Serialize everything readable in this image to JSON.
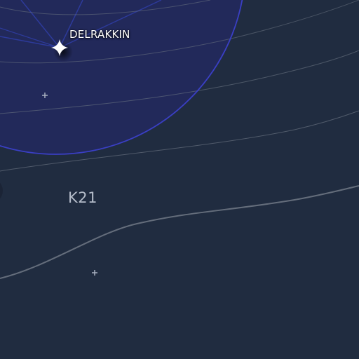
{
  "map": {
    "background_color": "#202c40",
    "territory_fill_color": "#22295a",
    "territory_border_color": "#3a3fc4",
    "lane_color": "#2d3a9a",
    "contour_color": "#6b7482",
    "star_color": "#ffffff",
    "minor_marker_color": "#a8b0c0"
  },
  "system": {
    "name": "DELRAKKIN",
    "icon": "four-point-star-icon"
  },
  "sector": {
    "name": "K21"
  },
  "markers": [
    {
      "icon": "plus-marker-icon"
    },
    {
      "icon": "plus-marker-icon"
    }
  ]
}
